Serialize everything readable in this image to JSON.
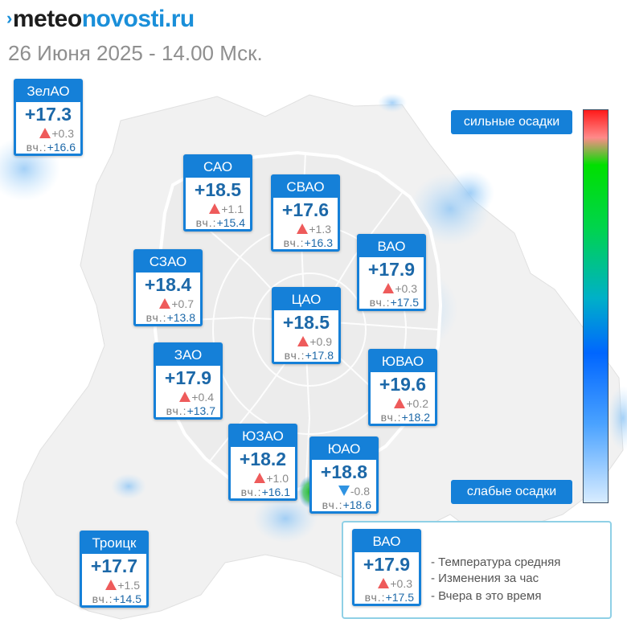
{
  "header": {
    "logo_prefix": "meteo",
    "logo_suffix": "novosti.ru",
    "date_line": "26 Июня 2025 - 14.00 Мск."
  },
  "colors": {
    "accent": "#1580d8",
    "temp_text": "#1c68a8",
    "rise_arrow": "#ee5b5b",
    "fall_arrow": "#2f93e2",
    "date_text": "#8f8f8f"
  },
  "districts": [
    {
      "id": "zelao",
      "name": "ЗелАО",
      "temp": "+17.3",
      "trend": "up",
      "change": "+0.3",
      "yesterday_label": "вч.:",
      "yesterday": "+16.6"
    },
    {
      "id": "sao",
      "name": "САО",
      "temp": "+18.5",
      "trend": "up",
      "change": "+1.1",
      "yesterday_label": "вч.:",
      "yesterday": "+15.4"
    },
    {
      "id": "svao",
      "name": "СВАО",
      "temp": "+17.6",
      "trend": "up",
      "change": "+1.3",
      "yesterday_label": "вч.:",
      "yesterday": "+16.3"
    },
    {
      "id": "vao",
      "name": "ВАО",
      "temp": "+17.9",
      "trend": "up",
      "change": "+0.3",
      "yesterday_label": "вч.:",
      "yesterday": "+17.5"
    },
    {
      "id": "szao",
      "name": "СЗАО",
      "temp": "+18.4",
      "trend": "up",
      "change": "+0.7",
      "yesterday_label": "вч.:",
      "yesterday": "+13.8"
    },
    {
      "id": "cao",
      "name": "ЦАО",
      "temp": "+18.5",
      "trend": "up",
      "change": "+0.9",
      "yesterday_label": "вч.:",
      "yesterday": "+17.8"
    },
    {
      "id": "zao",
      "name": "ЗАО",
      "temp": "+17.9",
      "trend": "up",
      "change": "+0.4",
      "yesterday_label": "вч.:",
      "yesterday": "+13.7"
    },
    {
      "id": "yuvao",
      "name": "ЮВАО",
      "temp": "+19.6",
      "trend": "up",
      "change": "+0.2",
      "yesterday_label": "вч.:",
      "yesterday": "+18.2"
    },
    {
      "id": "yuzao",
      "name": "ЮЗАО",
      "temp": "+18.2",
      "trend": "up",
      "change": "+1.0",
      "yesterday_label": "вч.:",
      "yesterday": "+16.1"
    },
    {
      "id": "yuao",
      "name": "ЮАО",
      "temp": "+18.8",
      "trend": "down",
      "change": "-0.8",
      "yesterday_label": "вч.:",
      "yesterday": "+18.6"
    },
    {
      "id": "troick",
      "name": "Троицк",
      "temp": "+17.7",
      "trend": "up",
      "change": "+1.5",
      "yesterday_label": "вч.:",
      "yesterday": "+14.5"
    }
  ],
  "precip_scale": {
    "top_label": "сильные осадки",
    "bottom_label": "слабые осадки"
  },
  "legend": {
    "sample": {
      "name": "ВАО",
      "temp": "+17.9",
      "trend": "up",
      "change": "+0.3",
      "yesterday_label": "вч.:",
      "yesterday": "+17.5"
    },
    "items": [
      "- Температура средняя",
      "- Изменения за час",
      "- Вчера в это время"
    ]
  }
}
